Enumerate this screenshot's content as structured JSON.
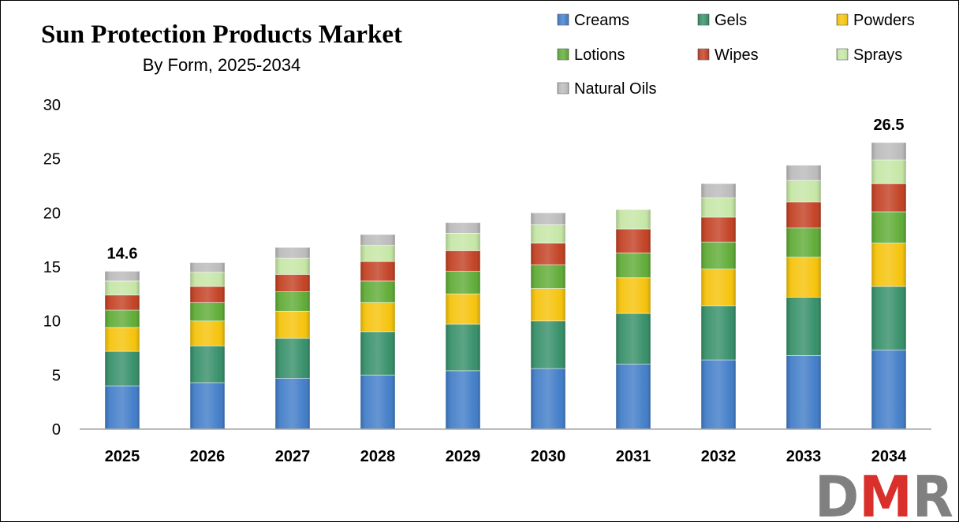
{
  "chart_data": {
    "type": "bar",
    "stacked": true,
    "title": "Sun Protection Products Market",
    "subtitle": "By Form, 2025-2034",
    "categories": [
      "2025",
      "2026",
      "2027",
      "2028",
      "2029",
      "2030",
      "2031",
      "2032",
      "2033",
      "2034"
    ],
    "ylim": [
      0,
      30
    ],
    "yticks": [
      0,
      5,
      10,
      15,
      20,
      25,
      30
    ],
    "grid": false,
    "legend_position": "top-right",
    "series": [
      {
        "name": "Creams",
        "color": "#3a78c6",
        "values": [
          4.0,
          4.3,
          4.7,
          5.0,
          5.4,
          5.6,
          6.0,
          6.4,
          6.8,
          7.3
        ]
      },
      {
        "name": "Gels",
        "color": "#2e8b63",
        "values": [
          3.2,
          3.4,
          3.7,
          4.0,
          4.3,
          4.4,
          4.7,
          5.0,
          5.4,
          5.9
        ]
      },
      {
        "name": "Powders",
        "color": "#f5c000",
        "values": [
          2.2,
          2.3,
          2.5,
          2.7,
          2.8,
          3.0,
          3.3,
          3.4,
          3.7,
          4.0
        ]
      },
      {
        "name": "Lotions",
        "color": "#59a82e",
        "values": [
          1.6,
          1.7,
          1.8,
          2.0,
          2.1,
          2.2,
          2.3,
          2.5,
          2.7,
          2.9
        ]
      },
      {
        "name": "Wipes",
        "color": "#c0391a",
        "values": [
          1.4,
          1.5,
          1.6,
          1.8,
          1.9,
          2.0,
          2.2,
          2.3,
          2.4,
          2.6
        ]
      },
      {
        "name": "Sprays",
        "color": "#c3e5a1",
        "values": [
          1.3,
          1.3,
          1.5,
          1.5,
          1.6,
          1.7,
          1.8,
          1.8,
          2.0,
          2.2
        ]
      },
      {
        "name": "Natural Oils",
        "color": "#b8b8b8",
        "values": [
          0.9,
          0.9,
          1.0,
          1.0,
          1.0,
          1.1,
          0.0,
          1.3,
          1.4,
          1.6
        ]
      }
    ],
    "data_labels": [
      {
        "category": "2025",
        "text": "14.6"
      },
      {
        "category": "2034",
        "text": "26.5"
      }
    ]
  },
  "logo": {
    "text": "DMR",
    "colors": [
      "#808080",
      "#d9302b",
      "#808080"
    ]
  }
}
